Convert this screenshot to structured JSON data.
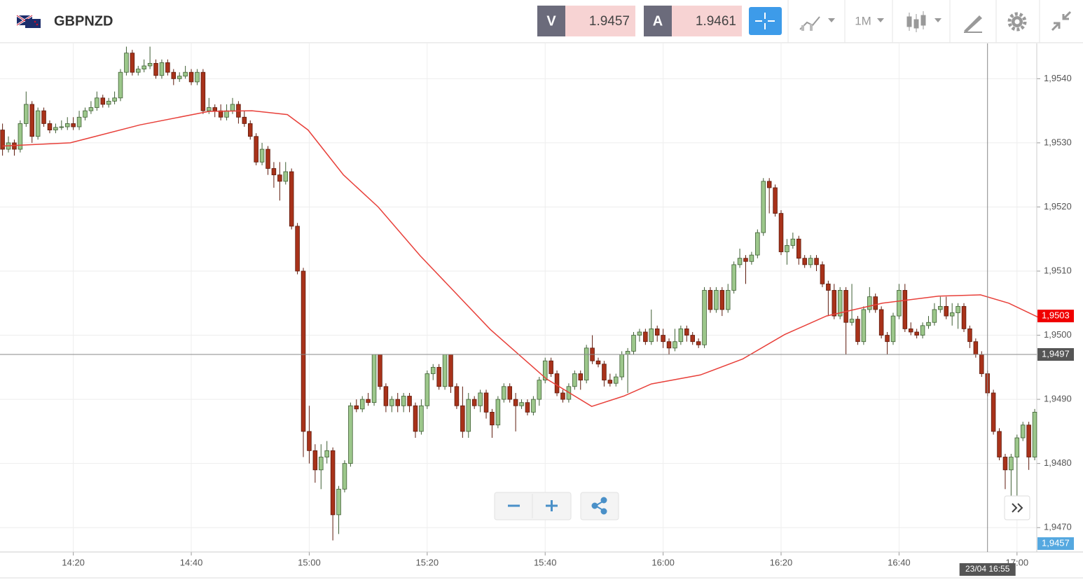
{
  "toolbar": {
    "symbol": "GBPNZD",
    "sell_label": "V",
    "sell_price": 1.9457,
    "buy_label": "A",
    "buy_price": 1.9461,
    "timeframe": "1M"
  },
  "chart_data": {
    "type": "candlestick",
    "open": [
      1.9532,
      1.9529,
      1.953,
      1.9529,
      1.9533,
      1.9536,
      1.9531,
      1.9535,
      1.9533,
      1.9532,
      1.95324,
      1.95325,
      1.9533,
      1.95325,
      1.9534,
      1.9535,
      1.95355,
      1.9537,
      1.9536,
      1.95365,
      1.9537,
      1.9541,
      1.9544,
      1.9541,
      1.95415,
      1.9542,
      1.95424,
      1.95405,
      1.95425,
      1.9541,
      1.954,
      1.95404,
      1.9541,
      1.95395,
      1.9541,
      1.9535,
      1.95355,
      1.9535,
      1.9534,
      1.9535,
      1.9536,
      1.9534,
      1.9533,
      1.9531,
      1.9527,
      1.9529,
      1.9526,
      1.9525,
      1.9524,
      1.95255,
      1.9517,
      1.951,
      1.9485,
      1.9482,
      1.9479,
      1.9481,
      1.9482,
      1.9472,
      1.9476,
      1.948,
      1.9489,
      1.94885,
      1.949,
      1.94895,
      1.9497,
      1.9492,
      1.9489,
      1.949,
      1.9489,
      1.94905,
      1.9489,
      1.9485,
      1.9489,
      1.9494,
      1.9495,
      1.9492,
      1.9497,
      1.9492,
      1.9489,
      1.9485,
      1.949,
      1.9489,
      1.9491,
      1.9488,
      1.9486,
      1.949,
      1.9492,
      1.949,
      1.9489,
      1.94895,
      1.9488,
      1.949,
      1.9493,
      1.9496,
      1.9494,
      1.9491,
      1.949,
      1.9492,
      1.9494,
      1.9493,
      1.9498,
      1.9496,
      1.94955,
      1.9493,
      1.94925,
      1.94935,
      1.9497,
      1.94975,
      1.95,
      1.95005,
      1.9499,
      1.9501,
      1.95,
      1.9499,
      1.9498,
      1.9499,
      1.9501,
      1.95,
      1.9499,
      1.94985,
      1.9507,
      1.9504,
      1.9507,
      1.9504,
      1.9507,
      1.9511,
      1.9512,
      1.95115,
      1.95125,
      1.9516,
      1.9524,
      1.9523,
      1.9519,
      1.9513,
      1.9514,
      1.9515,
      1.9512,
      1.9511,
      1.9512,
      1.9511,
      1.9508,
      1.9507,
      1.9503,
      1.9507,
      1.9502,
      1.95025,
      1.9499,
      1.9504,
      1.9506,
      1.9504,
      1.95,
      1.9499,
      1.9503,
      1.9507,
      1.9501,
      1.95005,
      1.95,
      1.95015,
      1.9502,
      1.9504,
      1.95045,
      1.9503,
      1.95035,
      1.95045,
      1.9501,
      1.9499,
      1.9497,
      1.9494,
      1.9491,
      1.9485,
      1.9481,
      1.9479,
      1.9481,
      1.9484,
      1.9486,
      1.9481
    ],
    "high": [
      1.9533,
      1.9531,
      1.95305,
      1.95335,
      1.9538,
      1.95365,
      1.95355,
      1.95355,
      1.95335,
      1.9533,
      1.95335,
      1.9534,
      1.9534,
      1.9535,
      1.95355,
      1.95365,
      1.9538,
      1.95375,
      1.9537,
      1.9538,
      1.95415,
      1.9545,
      1.95445,
      1.9542,
      1.9543,
      1.9545,
      1.9543,
      1.9543,
      1.9543,
      1.95415,
      1.9541,
      1.9542,
      1.95415,
      1.95415,
      1.95415,
      1.9537,
      1.9536,
      1.9536,
      1.9536,
      1.9537,
      1.95365,
      1.9535,
      1.95335,
      1.95315,
      1.953,
      1.95295,
      1.9527,
      1.9527,
      1.9527,
      1.9526,
      1.95175,
      1.95105,
      1.9489,
      1.9483,
      1.9483,
      1.94835,
      1.94825,
      1.94765,
      1.94805,
      1.94895,
      1.949,
      1.94905,
      1.9491,
      1.9497,
      1.9497,
      1.94925,
      1.94905,
      1.9491,
      1.9491,
      1.9491,
      1.94895,
      1.949,
      1.94945,
      1.94955,
      1.94955,
      1.9497,
      1.9497,
      1.94925,
      1.9492,
      1.9491,
      1.94905,
      1.94915,
      1.94915,
      1.94885,
      1.94905,
      1.94925,
      1.94925,
      1.9491,
      1.949,
      1.949,
      1.94905,
      1.94935,
      1.94965,
      1.94965,
      1.94945,
      1.94915,
      1.94925,
      1.94945,
      1.94945,
      1.94985,
      1.95,
      1.94965,
      1.9496,
      1.9494,
      1.9494,
      1.94975,
      1.9498,
      1.95005,
      1.9501,
      1.9501,
      1.9504,
      1.95015,
      1.9501,
      1.94995,
      1.9501,
      1.95015,
      1.95015,
      1.95005,
      1.94995,
      1.95075,
      1.95075,
      1.95075,
      1.95075,
      1.9508,
      1.95115,
      1.95135,
      1.95125,
      1.9513,
      1.95165,
      1.95245,
      1.95245,
      1.95235,
      1.95195,
      1.9515,
      1.9516,
      1.95155,
      1.95125,
      1.95125,
      1.95125,
      1.95115,
      1.95085,
      1.9508,
      1.95075,
      1.95075,
      1.9508,
      1.9503,
      1.95045,
      1.95075,
      1.95065,
      1.95045,
      1.95005,
      1.95035,
      1.9508,
      1.9508,
      1.9502,
      1.9501,
      1.9502,
      1.9503,
      1.9505,
      1.9506,
      1.9506,
      1.9505,
      1.9505,
      1.9505,
      1.95015,
      1.94995,
      1.94975,
      1.94945,
      1.94915,
      1.94855,
      1.94815,
      1.94815,
      1.94845,
      1.94865,
      1.94865,
      1.94885
    ],
    "low": [
      1.9528,
      1.95285,
      1.9528,
      1.95285,
      1.95325,
      1.953,
      1.95305,
      1.95325,
      1.95315,
      1.95315,
      1.9532,
      1.9532,
      1.9532,
      1.9532,
      1.95335,
      1.95345,
      1.9535,
      1.95355,
      1.95355,
      1.9536,
      1.95365,
      1.95405,
      1.95405,
      1.95405,
      1.9541,
      1.95415,
      1.954,
      1.954,
      1.95405,
      1.9539,
      1.95395,
      1.954,
      1.9539,
      1.9539,
      1.95345,
      1.95345,
      1.9534,
      1.95335,
      1.95335,
      1.95345,
      1.9533,
      1.95325,
      1.95305,
      1.95265,
      1.95265,
      1.9525,
      1.9523,
      1.9521,
      1.95235,
      1.95165,
      1.95095,
      1.9481,
      1.948,
      1.9477,
      1.9476,
      1.948,
      1.9468,
      1.9469,
      1.94755,
      1.94795,
      1.9488,
      1.9488,
      1.9489,
      1.9489,
      1.94915,
      1.9488,
      1.9488,
      1.9488,
      1.9488,
      1.9488,
      1.9484,
      1.94845,
      1.94885,
      1.9493,
      1.94915,
      1.94915,
      1.9491,
      1.94885,
      1.9484,
      1.9484,
      1.94885,
      1.9488,
      1.9487,
      1.9484,
      1.94855,
      1.94895,
      1.94895,
      1.9485,
      1.94885,
      1.94875,
      1.94875,
      1.9489,
      1.94925,
      1.94935,
      1.94905,
      1.94895,
      1.94895,
      1.94915,
      1.94915,
      1.94925,
      1.94955,
      1.9495,
      1.9492,
      1.9492,
      1.9492,
      1.9493,
      1.9491,
      1.9497,
      1.9499,
      1.94985,
      1.94985,
      1.9499,
      1.9498,
      1.9497,
      1.94975,
      1.94985,
      1.9499,
      1.94985,
      1.9498,
      1.9498,
      1.95035,
      1.95035,
      1.9503,
      1.95035,
      1.95065,
      1.95105,
      1.9508,
      1.9511,
      1.9512,
      1.95155,
      1.9519,
      1.95185,
      1.95125,
      1.9511,
      1.95135,
      1.9511,
      1.95105,
      1.95105,
      1.951,
      1.95075,
      1.9503,
      1.95025,
      1.95025,
      1.9497,
      1.95015,
      1.94985,
      1.94985,
      1.95035,
      1.95035,
      1.94995,
      1.9497,
      1.94985,
      1.95025,
      1.95005,
      1.95,
      1.94995,
      1.94995,
      1.9501,
      1.95015,
      1.95035,
      1.95025,
      1.95015,
      1.9501,
      1.95005,
      1.9498,
      1.94965,
      1.94935,
      1.94905,
      1.94845,
      1.94805,
      1.9476,
      1.9473,
      1.9475,
      1.94835,
      1.9479,
      1.94805
    ],
    "close": [
      1.9529,
      1.953,
      1.9529,
      1.9533,
      1.9536,
      1.9531,
      1.9535,
      1.9533,
      1.9532,
      1.95324,
      1.95325,
      1.9533,
      1.95325,
      1.9534,
      1.9535,
      1.95355,
      1.9537,
      1.9536,
      1.95365,
      1.9537,
      1.9541,
      1.9544,
      1.9541,
      1.95415,
      1.9542,
      1.95424,
      1.95405,
      1.95425,
      1.9541,
      1.954,
      1.95404,
      1.9541,
      1.95395,
      1.9541,
      1.9535,
      1.95355,
      1.9535,
      1.9534,
      1.9535,
      1.9536,
      1.9534,
      1.9533,
      1.9531,
      1.9527,
      1.9529,
      1.9526,
      1.9525,
      1.9524,
      1.95255,
      1.9517,
      1.951,
      1.9485,
      1.9482,
      1.9479,
      1.9481,
      1.9482,
      1.9472,
      1.9476,
      1.948,
      1.9489,
      1.94885,
      1.949,
      1.94895,
      1.9497,
      1.9492,
      1.9489,
      1.949,
      1.9489,
      1.94905,
      1.9489,
      1.9485,
      1.9489,
      1.9494,
      1.9495,
      1.9492,
      1.9497,
      1.9492,
      1.9489,
      1.9485,
      1.949,
      1.9489,
      1.9491,
      1.9488,
      1.9486,
      1.949,
      1.9492,
      1.949,
      1.9489,
      1.94895,
      1.9488,
      1.949,
      1.9493,
      1.9496,
      1.9494,
      1.9491,
      1.949,
      1.9492,
      1.9494,
      1.9493,
      1.9498,
      1.9496,
      1.94955,
      1.9493,
      1.94925,
      1.94935,
      1.9497,
      1.94975,
      1.95,
      1.95005,
      1.9499,
      1.9501,
      1.95,
      1.9499,
      1.9498,
      1.9499,
      1.9501,
      1.95,
      1.9499,
      1.94985,
      1.9507,
      1.9504,
      1.9507,
      1.9504,
      1.9507,
      1.9511,
      1.9512,
      1.95115,
      1.95125,
      1.9516,
      1.9524,
      1.9523,
      1.9519,
      1.9513,
      1.9514,
      1.9515,
      1.9512,
      1.9511,
      1.9512,
      1.9511,
      1.9508,
      1.9507,
      1.9503,
      1.9507,
      1.9502,
      1.95025,
      1.9499,
      1.9504,
      1.9506,
      1.9504,
      1.95,
      1.9499,
      1.9503,
      1.9507,
      1.9501,
      1.95005,
      1.95,
      1.95015,
      1.9502,
      1.9504,
      1.95045,
      1.9503,
      1.95035,
      1.95045,
      1.9501,
      1.9499,
      1.9497,
      1.9494,
      1.9491,
      1.9485,
      1.9481,
      1.9479,
      1.9481,
      1.9484,
      1.9486,
      1.9481,
      1.9488
    ],
    "up_color": "#9cc78b",
    "down_color": "#a8321a",
    "moving_average": {
      "color": "#e8403a",
      "x": [
        0,
        11.5,
        23.3,
        35,
        42.3,
        48.3,
        51.8,
        57.8,
        63.7,
        70.8,
        82.7,
        92.2,
        99.9,
        105.3,
        110,
        118.3,
        125.5,
        132.6,
        139.7,
        149.2,
        158.7,
        165.8,
        170.6,
        175.6
      ],
      "values": [
        1.95295,
        1.953,
        1.95328,
        1.95349,
        1.9535,
        1.95344,
        1.9532,
        1.9525,
        1.952,
        1.95124,
        1.95009,
        1.94932,
        1.94889,
        1.94905,
        1.94924,
        1.94938,
        1.94963,
        1.95001,
        1.9503,
        1.9505,
        1.95061,
        1.95063,
        1.9505,
        1.95028
      ]
    },
    "xlim": [
      -0.43,
      175.35
    ],
    "xticks": [
      {
        "value": 12,
        "label": "14:20"
      },
      {
        "value": 32,
        "label": "14:40"
      },
      {
        "value": 52,
        "label": "15:00"
      },
      {
        "value": 72,
        "label": "15:20"
      },
      {
        "value": 92,
        "label": "15:40"
      },
      {
        "value": 112,
        "label": "16:00"
      },
      {
        "value": 132,
        "label": "16:20"
      },
      {
        "value": 152,
        "label": "16:40"
      },
      {
        "value": 172,
        "label": "17:00"
      }
    ],
    "ylim": [
      1.94662,
      1.95455
    ],
    "yticks": [
      {
        "value": 1.954,
        "label": "1,9540"
      },
      {
        "value": 1.953,
        "label": "1,9530"
      },
      {
        "value": 1.952,
        "label": "1,9520"
      },
      {
        "value": 1.951,
        "label": "1,9510"
      },
      {
        "value": 1.95,
        "label": "1,9500"
      },
      {
        "value": 1.949,
        "label": "1,9490"
      },
      {
        "value": 1.948,
        "label": "1,9480"
      },
      {
        "value": 1.947,
        "label": "1,9470"
      }
    ],
    "grid": true,
    "crosshair": {
      "y": {
        "value": 1.9497,
        "label": "1,9497"
      },
      "x": {
        "value": 167,
        "label": "23/04 16:55"
      }
    },
    "ma_label": {
      "value": 1.9503,
      "label": "1,9503"
    },
    "price_label": {
      "value": 1.9457,
      "label": "1,9457"
    }
  }
}
